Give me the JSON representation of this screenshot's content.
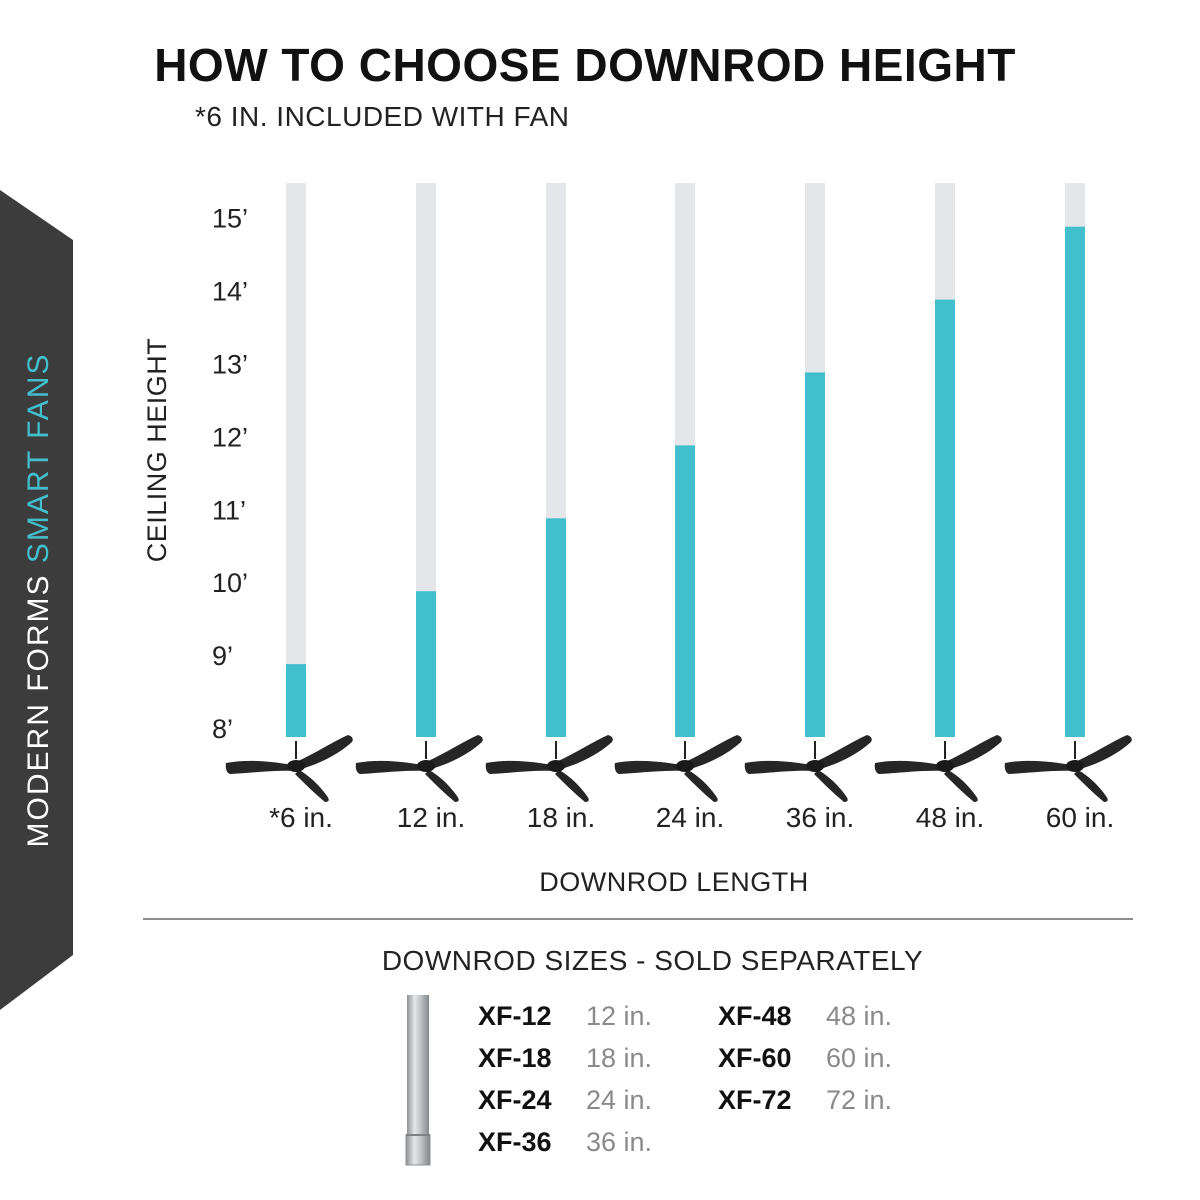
{
  "header": {
    "title": "HOW TO CHOOSE DOWNROD HEIGHT",
    "subtitle": "*6 IN. INCLUDED WITH FAN"
  },
  "brand": {
    "name_part1": "MODERN FORMS",
    "name_part2": "SMART FANS",
    "banner_color": "#3c3c3c",
    "accent_color": "#41bfcd"
  },
  "chart_data": {
    "type": "bar",
    "xlabel": "DOWNROD LENGTH",
    "ylabel": "CEILING HEIGHT",
    "categories": [
      "*6 in.",
      "12 in.",
      "18 in.",
      "24 in.",
      "36 in.",
      "48 in.",
      "60 in."
    ],
    "values": [
      9,
      10,
      11,
      12,
      13,
      14,
      15
    ],
    "ytick_labels": [
      "8’",
      "9’",
      "10’",
      "11’",
      "12’",
      "13’",
      "14’",
      "15’"
    ],
    "ytick_values": [
      8,
      9,
      10,
      11,
      12,
      13,
      14,
      15
    ],
    "ylim": [
      8,
      15.35
    ],
    "bar_color": "#41bfcd",
    "track_color": "#e5e6ea",
    "fan_icon": "ceiling-fan-icon",
    "grid": false,
    "legend": "none"
  },
  "downrod_sizes": {
    "title": "DOWNROD SIZES - SOLD SEPARATELY",
    "image_icon": "downrod-pipe-icon",
    "left_column": [
      {
        "code": "XF-12",
        "length": "12 in."
      },
      {
        "code": "XF-18",
        "length": "18 in."
      },
      {
        "code": "XF-24",
        "length": "24 in."
      },
      {
        "code": "XF-36",
        "length": "36 in."
      }
    ],
    "right_column": [
      {
        "code": "XF-48",
        "length": "48 in."
      },
      {
        "code": "XF-60",
        "length": "60 in."
      },
      {
        "code": "XF-72",
        "length": "72 in."
      }
    ]
  }
}
